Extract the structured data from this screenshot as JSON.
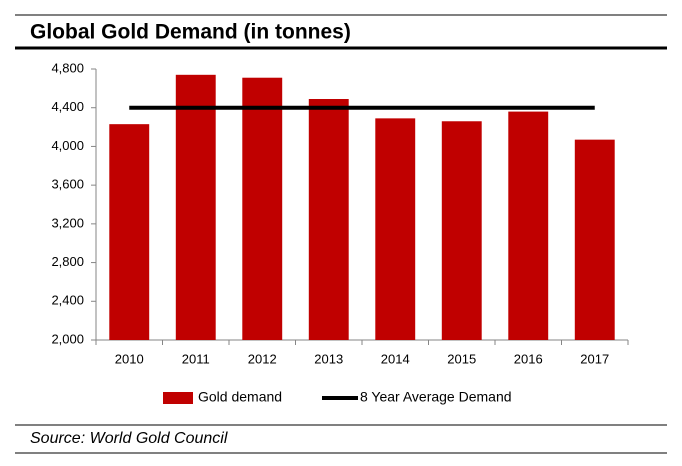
{
  "chart_data": {
    "type": "bar",
    "title": "Global Gold Demand (in tonnes)",
    "categories": [
      "2010",
      "2011",
      "2012",
      "2013",
      "2014",
      "2015",
      "2016",
      "2017"
    ],
    "series": [
      {
        "name": "Gold demand",
        "color": "#c00000",
        "values": [
          4230,
          4740,
          4710,
          4490,
          4290,
          4260,
          4360,
          4070
        ]
      },
      {
        "name": "8 Year Average Demand",
        "type": "line",
        "color": "#000000",
        "values": [
          4400,
          4400,
          4400,
          4400,
          4400,
          4400,
          4400,
          4400
        ]
      }
    ],
    "ylim": [
      2000,
      4800
    ],
    "yticks": [
      {
        "value": 2000,
        "label": "2,000"
      },
      {
        "value": 2400,
        "label": "2,400"
      },
      {
        "value": 2800,
        "label": "2,800"
      },
      {
        "value": 3200,
        "label": "3,200"
      },
      {
        "value": 3600,
        "label": "3,600"
      },
      {
        "value": 4000,
        "label": "4,000"
      },
      {
        "value": 4400,
        "label": "4,400"
      },
      {
        "value": 4800,
        "label": "4,800"
      }
    ],
    "grid": false,
    "source": "Source: World Gold Council"
  }
}
